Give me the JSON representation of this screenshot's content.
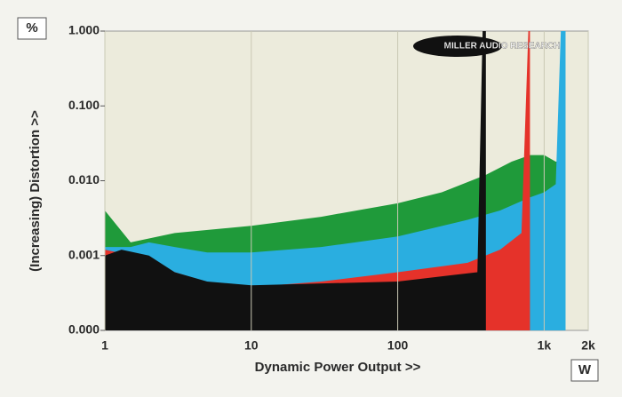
{
  "chart_data": {
    "type": "area",
    "y_unit": "%",
    "x_unit": "W",
    "xlabel": "Dynamic Power Output >>",
    "ylabel": "(Increasing) Distortion >>",
    "logo": "MILLER AUDIO RESEARCH",
    "xlog": true,
    "ylog": true,
    "grid": true,
    "xlim": [
      1,
      2000
    ],
    "ylim": [
      0.0001,
      1
    ],
    "xticks": [
      1,
      10,
      100,
      {
        "value": 1000,
        "label": "1k"
      },
      {
        "value": 2000,
        "label": "2k"
      }
    ],
    "yticks": [
      {
        "value": 0.0001,
        "label": "0.000"
      },
      0.001,
      {
        "value": 0.01,
        "label": "0.010"
      },
      {
        "value": 0.1,
        "label": "0.100"
      },
      {
        "value": 1,
        "label": "1.000"
      }
    ],
    "series": [
      {
        "color": "#1f9a3a",
        "x": [
          1,
          1.5,
          3,
          10,
          30,
          100,
          200,
          400,
          600,
          800,
          1000,
          1200,
          1250
        ],
        "values": [
          0.004,
          0.0015,
          0.002,
          0.0025,
          0.0033,
          0.005,
          0.007,
          0.012,
          0.018,
          0.022,
          0.022,
          0.018,
          0.018
        ]
      },
      {
        "color": "#2aaee0",
        "x": [
          1,
          1.5,
          2,
          3,
          5,
          10,
          30,
          100,
          300,
          500,
          800,
          1000,
          1200,
          1300,
          1400
        ],
        "values": [
          0.0013,
          0.0013,
          0.0015,
          0.0013,
          0.0011,
          0.0011,
          0.0013,
          0.0018,
          0.003,
          0.004,
          0.006,
          0.007,
          0.009,
          1,
          1
        ]
      },
      {
        "color": "#e5322a",
        "x": [
          1,
          2,
          3,
          6,
          10,
          30,
          100,
          300,
          500,
          700,
          780,
          800
        ],
        "values": [
          0.0012,
          0.0009,
          0.0006,
          0.0004,
          0.00038,
          0.00045,
          0.0006,
          0.0008,
          0.0012,
          0.002,
          1,
          1
        ]
      },
      {
        "color": "#111111",
        "x": [
          1,
          1.3,
          2,
          3,
          5,
          10,
          100,
          350,
          380,
          400
        ],
        "values": [
          0.001,
          0.0012,
          0.001,
          0.0006,
          0.00045,
          0.0004,
          0.00045,
          0.0006,
          1,
          1
        ]
      }
    ]
  }
}
